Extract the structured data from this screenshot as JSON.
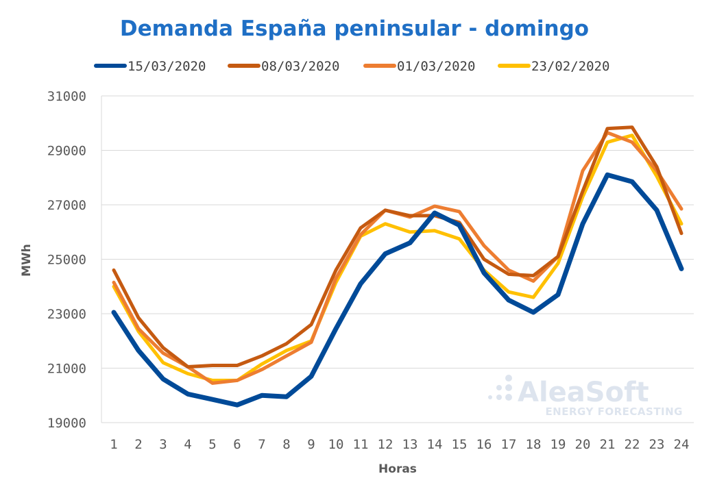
{
  "chart_data": {
    "type": "line",
    "title": "Demanda España peninsular - domingo",
    "xlabel": "Horas",
    "ylabel": "MWh",
    "categories": [
      "1",
      "2",
      "3",
      "4",
      "5",
      "6",
      "7",
      "8",
      "9",
      "10",
      "11",
      "12",
      "13",
      "14",
      "15",
      "16",
      "17",
      "18",
      "19",
      "20",
      "21",
      "22",
      "23",
      "24"
    ],
    "y_ticks": [
      "19000",
      "21000",
      "23000",
      "25000",
      "27000",
      "29000",
      "31000"
    ],
    "ylim": [
      19000,
      31000
    ],
    "grid": true,
    "legend_position": "top",
    "series": [
      {
        "name": "15/03/2020",
        "color": "#004a98",
        "values": [
          23050,
          21650,
          20600,
          20050,
          19850,
          19650,
          20000,
          19950,
          20700,
          22450,
          24100,
          25200,
          25600,
          26700,
          26250,
          24500,
          23500,
          23050,
          23700,
          26300,
          28100,
          27850,
          26800,
          24650
        ]
      },
      {
        "name": "08/03/2020",
        "color": "#c55a11",
        "values": [
          24600,
          22850,
          21750,
          21050,
          21100,
          21100,
          21450,
          21900,
          22600,
          24600,
          26150,
          26800,
          26600,
          26600,
          26350,
          25000,
          24450,
          24400,
          25100,
          27500,
          29800,
          29850,
          28400,
          25950
        ]
      },
      {
        "name": "01/03/2020",
        "color": "#ed7d31",
        "values": [
          24150,
          22450,
          21550,
          21050,
          20450,
          20550,
          20950,
          21450,
          21950,
          24300,
          25900,
          26800,
          26550,
          26950,
          26750,
          25500,
          24600,
          24200,
          25100,
          28250,
          29650,
          29300,
          28250,
          26850
        ]
      },
      {
        "name": "23/02/2020",
        "color": "#ffc000",
        "values": [
          24000,
          22350,
          21200,
          20800,
          20550,
          20550,
          21150,
          21650,
          22000,
          24150,
          25850,
          26300,
          26000,
          26050,
          25750,
          24600,
          23800,
          23600,
          24850,
          27300,
          29300,
          29550,
          28050,
          26300
        ]
      }
    ]
  },
  "watermark": {
    "brand": "AleaSoft",
    "tagline": "ENERGY FORECASTING"
  }
}
